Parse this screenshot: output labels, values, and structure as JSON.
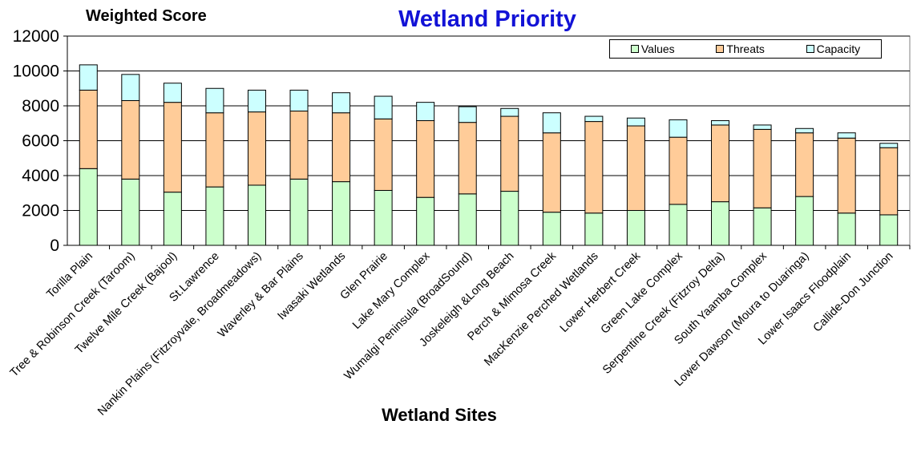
{
  "chart_data": {
    "type": "bar",
    "stacked": true,
    "title": "Wetland Priority",
    "ylabel": "Weighted Score",
    "xlabel": "Wetland Sites",
    "ylim": [
      0,
      12000
    ],
    "yticks": [
      0,
      2000,
      4000,
      6000,
      8000,
      10000,
      12000
    ],
    "grid": true,
    "legend_position": "top-right",
    "categories": [
      "Torilla Plain",
      "Tree & Robinson Creek (Taroom)",
      "Twelve Mile Creek (Bajool)",
      "St.Lawrence",
      "Nankin Plains (Fitzroyvale, Broadmeadows)",
      "Waverley & Bar Plains",
      "Iwasaki Wetlands",
      "Glen Prairie",
      "Lake Mary Complex",
      "Wumalgi Peninsula (BroadSound)",
      "Joskeleigh &Long Beach",
      "Perch & Mimosa Creek",
      "MacKenzie Perched Wetlands",
      "Lower Herbert Creek",
      "Green Lake Complex",
      "Serpentine Creek (Fitzroy Delta)",
      "South Yaamba Complex",
      "Lower Dawson (Moura to Duaringa)",
      "Lower Isaacs Floodplain",
      "Callide-Don Junction"
    ],
    "series": [
      {
        "name": "Values",
        "color": "#ccffcc",
        "values": [
          4400,
          3800,
          3050,
          3350,
          3450,
          3800,
          3650,
          3150,
          2750,
          2950,
          3100,
          1900,
          1850,
          2000,
          2350,
          2500,
          2150,
          2800,
          1850,
          1750
        ]
      },
      {
        "name": "Threats",
        "color": "#ffcc99",
        "values": [
          4500,
          4500,
          5150,
          4250,
          4200,
          3900,
          3950,
          4100,
          4400,
          4100,
          4300,
          4550,
          5250,
          4850,
          3850,
          4400,
          4500,
          3650,
          4300,
          3850
        ]
      },
      {
        "name": "Capacity",
        "color": "#ccffff",
        "values": [
          1450,
          1500,
          1100,
          1400,
          1250,
          1200,
          1150,
          1300,
          1050,
          900,
          450,
          1150,
          300,
          450,
          1000,
          250,
          250,
          250,
          300,
          250
        ]
      }
    ]
  }
}
